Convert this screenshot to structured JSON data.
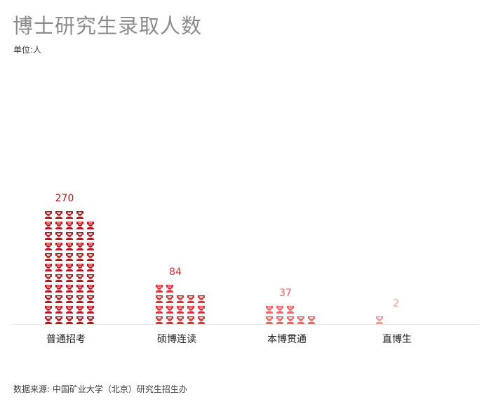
{
  "title": "博士研究生录取人数",
  "unit_label": "单位:人",
  "source": "数据来源: 中国矿业大学（北京）研究生招生办",
  "chart_data": {
    "type": "bar",
    "icon": "student-icon",
    "people_per_icon": 5,
    "categories": [
      "普通招考",
      "硕博连读",
      "本博贯通",
      "直博生"
    ],
    "values": [
      270,
      84,
      37,
      2
    ],
    "icon_counts": [
      54,
      17,
      8,
      1
    ],
    "colors": [
      "#b5191f",
      "#d83236",
      "#ee6464",
      "#f39a90"
    ],
    "title": "博士研究生录取人数",
    "ylabel": "单位:人",
    "grid": false,
    "legend": "none"
  }
}
